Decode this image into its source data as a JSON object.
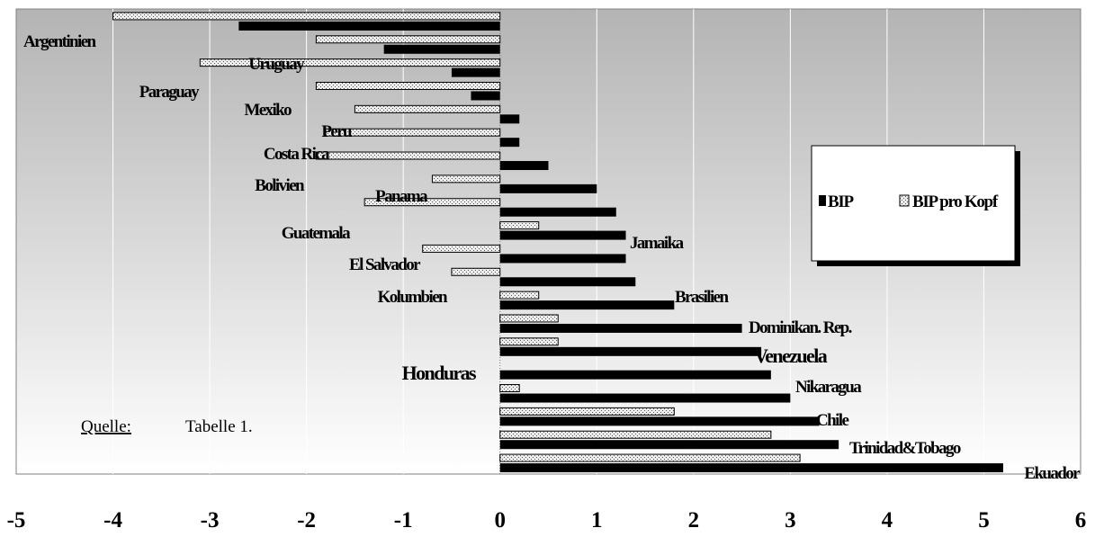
{
  "chart_data": {
    "type": "bar",
    "orientation": "horizontal",
    "categories": [
      "Argentinien",
      "Uruguay",
      "Paraguay",
      "Mexiko",
      "Peru",
      "Costa Rica",
      "Bolivien",
      "Panama",
      "Guatemala",
      "Jamaika",
      "El Salvador",
      "Kolumbien",
      "Brasilien",
      "Dominikan. Rep.",
      "Venezuela",
      "Honduras",
      "Nikaragua",
      "Chile",
      "Trinidad&Tobago",
      "Ekuador"
    ],
    "series": [
      {
        "name": "BIP",
        "values": [
          -2.7,
          -1.2,
          -0.5,
          -0.3,
          0.2,
          0.2,
          0.5,
          1.0,
          1.2,
          1.3,
          1.3,
          1.4,
          1.8,
          2.5,
          2.7,
          2.8,
          3.0,
          3.3,
          3.5,
          5.2
        ]
      },
      {
        "name": "BIP pro Kopf",
        "values": [
          -4.0,
          -1.9,
          -3.1,
          -1.9,
          -1.5,
          -1.8,
          -1.9,
          -0.7,
          -1.4,
          0.4,
          -0.8,
          -0.5,
          0.4,
          0.6,
          0.6,
          0.0,
          0.2,
          1.8,
          2.8,
          3.1
        ]
      }
    ],
    "xlim": [
      -5,
      6
    ],
    "xticks": [
      "-5",
      "-4",
      "-3",
      "-2",
      "-1",
      "0",
      "1",
      "2",
      "3",
      "4",
      "5",
      "6"
    ],
    "grid": true,
    "legend_position": "right",
    "colors": {
      "BIP": "#000000",
      "BIP pro Kopf": "#c8c8c8"
    }
  },
  "source_label": "Quelle:",
  "source_text": "Tabelle  1."
}
